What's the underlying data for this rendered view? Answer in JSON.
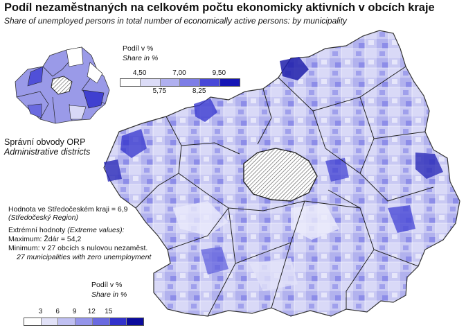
{
  "title": "Podíl nezaměstnaných na celkovém počtu ekonomicky aktivních v obcích kraje",
  "subtitle": "Share of unemployed persons in total number of economically active persons: by municipality",
  "legend_districts": {
    "title_cz": "Podíl v %",
    "title_en": "Share in %",
    "ticks_top": [
      "4,50",
      "7,00",
      "9,50"
    ],
    "ticks_bottom": [
      "5,75",
      "8,25"
    ],
    "colors": [
      "#ffffff",
      "#dcdcf7",
      "#b0b0ef",
      "#7d7de6",
      "#4848d8",
      "#1515b5"
    ]
  },
  "legend_municipalities": {
    "title_cz": "Podíl v %",
    "title_en": "Share in %",
    "ticks": [
      "3",
      "6",
      "9",
      "12",
      "15"
    ],
    "colors": [
      "#ffffff",
      "#e2e2f8",
      "#c0c0f2",
      "#9595ea",
      "#6a6ae0",
      "#3232cc",
      "#0b0b9c"
    ]
  },
  "inset": {
    "label_cz": "Správní obvody  ORP",
    "label_en": "Administrative districts"
  },
  "notes": {
    "region_value_cz": "Hodnota ve Středočeském kraji = 6,9",
    "region_value_en": "(Středočeský Region)",
    "extremes_cz": "Extrémní hodnoty",
    "extremes_en": "(Extreme values):",
    "maximum": "Maximum: Ždár = 54,2",
    "minimum": "Minimum: v 27 obcích s nulovou nezaměst.",
    "minimum_en": "27 municipalities with zero unemployment"
  }
}
